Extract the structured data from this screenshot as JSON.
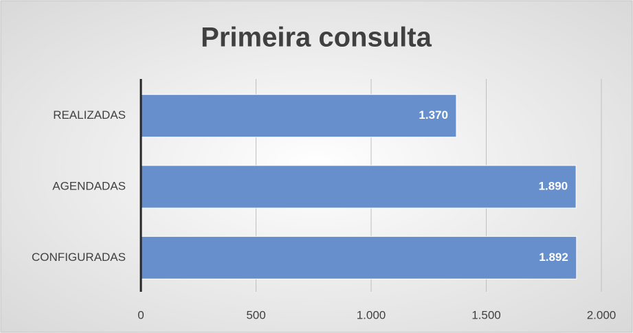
{
  "chart_data": {
    "type": "barh",
    "title": "Primeira consulta",
    "categories": [
      "REALIZADAS",
      "AGENDADAS",
      "CONFIGURADAS"
    ],
    "values": [
      1370,
      1890,
      1892
    ],
    "value_labels": [
      "1.370",
      "1.890",
      "1.892"
    ],
    "color": "#668fcb",
    "xlim": [
      0,
      2000
    ],
    "xticks": [
      0,
      500,
      {
        "value": 1000,
        "label": "1.000"
      },
      {
        "value": 1500,
        "label": "1.500"
      },
      {
        "value": 2000,
        "label": "2.000"
      }
    ],
    "grid": true
  }
}
